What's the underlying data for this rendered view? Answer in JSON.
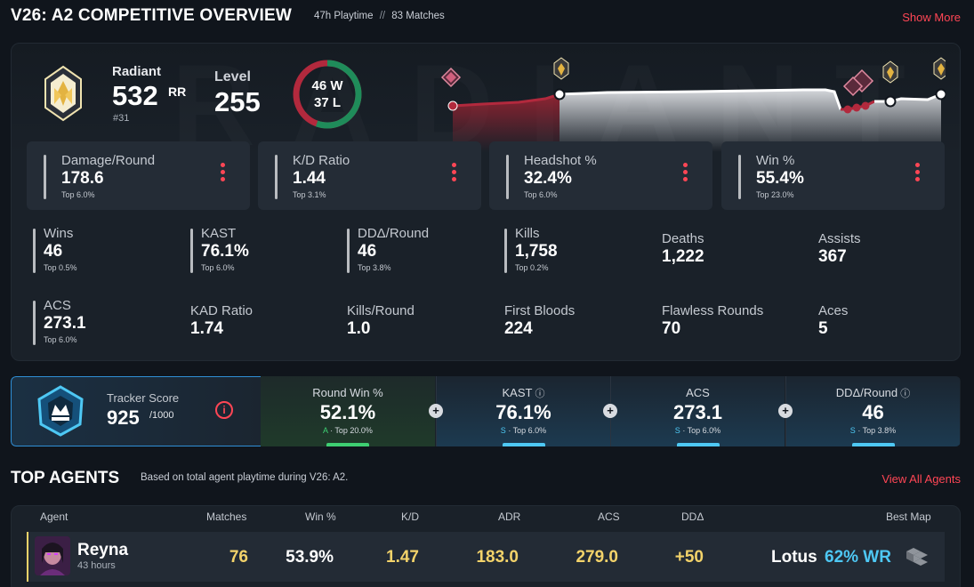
{
  "header": {
    "title": "V26: A2 COMPETITIVE OVERVIEW",
    "playtime": "47h Playtime",
    "separator": "//",
    "matches": "83 Matches",
    "show_more": "Show More"
  },
  "rank": {
    "name": "Radiant",
    "rr": "532",
    "rr_unit": "RR",
    "position": "#31",
    "level_label": "Level",
    "level": "255",
    "wins": "46 W",
    "losses": "37 L",
    "win_count": 46,
    "loss_count": 37
  },
  "main_stats": [
    {
      "label": "Damage/Round",
      "value": "178.6",
      "top": "Top 6.0%"
    },
    {
      "label": "K/D Ratio",
      "value": "1.44",
      "top": "Top 3.1%"
    },
    {
      "label": "Headshot %",
      "value": "32.4%",
      "top": "Top 6.0%"
    },
    {
      "label": "Win %",
      "value": "55.4%",
      "top": "Top 23.0%"
    }
  ],
  "stats": [
    {
      "label": "Wins",
      "value": "46",
      "top": "Top 0.5%"
    },
    {
      "label": "KAST",
      "value": "76.1%",
      "top": "Top 6.0%"
    },
    {
      "label": "DDΔ/Round",
      "value": "46",
      "top": "Top 3.8%"
    },
    {
      "label": "Kills",
      "value": "1,758",
      "top": "Top 0.2%"
    },
    {
      "label": "Deaths",
      "value": "1,222"
    },
    {
      "label": "Assists",
      "value": "367"
    },
    {
      "label": "ACS",
      "value": "273.1",
      "top": "Top 6.0%"
    },
    {
      "label": "KAD Ratio",
      "value": "1.74"
    },
    {
      "label": "Kills/Round",
      "value": "1.0"
    },
    {
      "label": "First Bloods",
      "value": "224"
    },
    {
      "label": "Flawless Rounds",
      "value": "70"
    },
    {
      "label": "Aces",
      "value": "5"
    }
  ],
  "tracker": {
    "label": "Tracker Score",
    "score": "925",
    "max": "/1000",
    "sections": [
      {
        "label": "Round Win %",
        "value": "52.1%",
        "grade": "A",
        "top": "Top 20.0%",
        "color": "#3ecf72"
      },
      {
        "label": "KAST",
        "value": "76.1%",
        "grade": "S",
        "top": "Top 6.0%",
        "color": "#4ec8f4"
      },
      {
        "label": "ACS",
        "value": "273.1",
        "grade": "S",
        "top": "Top 6.0%",
        "color": "#4ec8f4"
      },
      {
        "label": "DDΔ/Round",
        "value": "46",
        "grade": "S",
        "top": "Top 3.8%",
        "color": "#4ec8f4"
      }
    ]
  },
  "agents": {
    "title": "TOP AGENTS",
    "subtitle": "Based on total agent playtime during V26: A2.",
    "view_all": "View All Agents",
    "columns": {
      "agent": "Agent",
      "matches": "Matches",
      "win": "Win %",
      "kd": "K/D",
      "adr": "ADR",
      "acs": "ACS",
      "dd": "DDΔ",
      "best_map": "Best Map"
    },
    "rows": [
      {
        "name": "Reyna",
        "hours": "43 hours",
        "matches": "76",
        "win": "53.9%",
        "kd": "1.47",
        "adr": "183.0",
        "acs": "279.0",
        "dd": "+50",
        "map": "Lotus",
        "map_wr": "62% WR"
      }
    ]
  },
  "colors": {
    "accent_red": "#ff4655",
    "gold": "#f3d36a",
    "win_green": "#1f8c5a",
    "loss_red": "#b2293d",
    "cyan": "#4ec8f4"
  }
}
